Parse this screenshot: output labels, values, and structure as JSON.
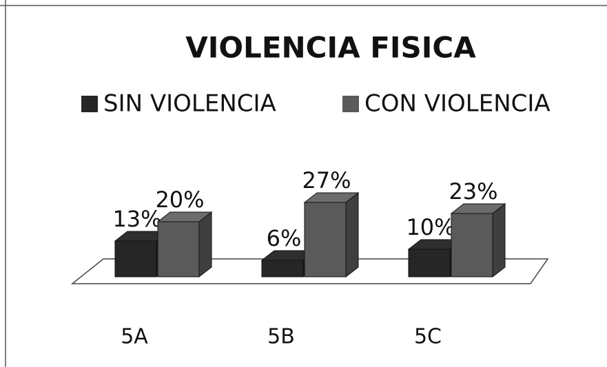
{
  "chart_data": {
    "type": "bar3d",
    "title": "VIOLENCIA FISICA",
    "categories": [
      "5A",
      "5B",
      "5C"
    ],
    "series": [
      {
        "name": "SIN VIOLENCIA",
        "color": "#262626",
        "values": [
          13,
          6,
          10
        ],
        "value_labels": [
          "13%",
          "6%",
          "10%"
        ]
      },
      {
        "name": "CON VIOLENCIA",
        "color": "#5a5a5a",
        "values": [
          20,
          27,
          23
        ],
        "value_labels": [
          "20%",
          "27%",
          "23%"
        ]
      }
    ],
    "legend": "top"
  }
}
